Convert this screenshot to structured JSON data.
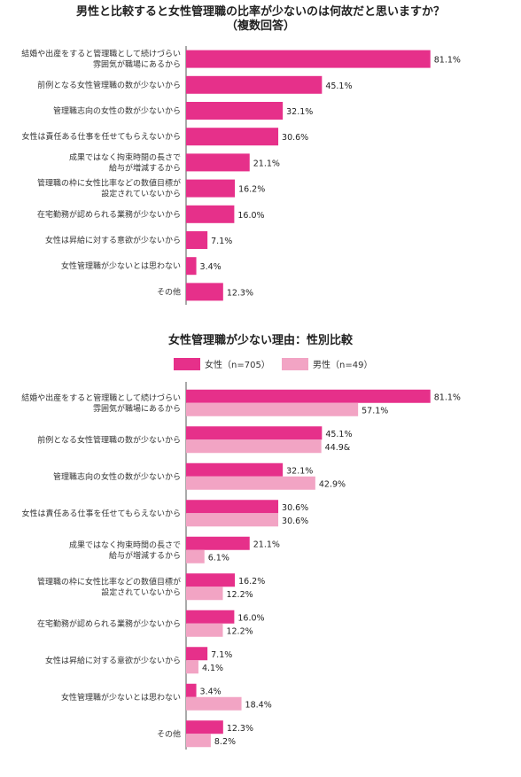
{
  "chart_data": [
    {
      "type": "bar",
      "orientation": "horizontal",
      "title": "男性と比較すると女性管理職の比率が少ないのは何故だと思いますか？",
      "subtitle": "（複数回答）",
      "categories": [
        [
          "結婚や出産をすると管理職として続けづらい",
          "雰囲気が職場にあるから"
        ],
        [
          "前例となる女性管理職の数が少ないから"
        ],
        [
          "管理職志向の女性の数が少ないから"
        ],
        [
          "女性は責任ある仕事を任せてもらえないから"
        ],
        [
          "成果ではなく拘束時間の長さで",
          "給与が増減するから"
        ],
        [
          "管理職の枠に女性比率などの数値目標が",
          "設定されていないから"
        ],
        [
          "在宅勤務が認められる業務が少ないから"
        ],
        [
          "女性は昇給に対する意欲が少ないから"
        ],
        [
          "女性管理職が少ないとは思わない"
        ],
        [
          "その他"
        ]
      ],
      "values": [
        81.1,
        45.1,
        32.1,
        30.6,
        21.1,
        16.2,
        16.0,
        7.1,
        3.4,
        12.3
      ],
      "value_labels": [
        "81.1%",
        "45.1%",
        "32.1%",
        "30.6%",
        "21.1%",
        "16.2%",
        "16.0%",
        "7.1%",
        "3.4%",
        "12.3%"
      ],
      "color": "#e6308a",
      "xlim": [
        0,
        100
      ]
    },
    {
      "type": "bar",
      "orientation": "horizontal",
      "title": "女性管理職が少ない理由：性別比較",
      "legend_position": "top",
      "categories": [
        [
          "結婚や出産をすると管理職として続けづらい",
          "雰囲気が職場にあるから"
        ],
        [
          "前例となる女性管理職の数が少ないから"
        ],
        [
          "管理職志向の女性の数が少ないから"
        ],
        [
          "女性は責任ある仕事を任せてもらえないから"
        ],
        [
          "成果ではなく拘束時間の長さで",
          "給与が増減するから"
        ],
        [
          "管理職の枠に女性比率などの数値目標が",
          "設定されていないから"
        ],
        [
          "在宅勤務が認められる業務が少ないから"
        ],
        [
          "女性は昇給に対する意欲が少ないから"
        ],
        [
          "女性管理職が少ないとは思わない"
        ],
        [
          "その他"
        ]
      ],
      "series": [
        {
          "name": "女性（n=705）",
          "color": "#e6308a",
          "values": [
            81.1,
            45.1,
            32.1,
            30.6,
            21.1,
            16.2,
            16.0,
            7.1,
            3.4,
            12.3
          ],
          "value_labels": [
            "81.1%",
            "45.1%",
            "32.1%",
            "30.6%",
            "21.1%",
            "16.2%",
            "16.0%",
            "7.1%",
            "3.4%",
            "12.3%"
          ]
        },
        {
          "name": "男性（n=49）",
          "color": "#f2a4c4",
          "values": [
            57.1,
            44.9,
            42.9,
            30.6,
            6.1,
            12.2,
            12.2,
            4.1,
            18.4,
            8.2
          ],
          "value_labels": [
            "57.1%",
            "44.9&",
            "42.9%",
            "30.6%",
            "6.1%",
            "12.2%",
            "12.2%",
            "4.1%",
            "18.4%",
            "8.2%"
          ]
        }
      ],
      "xlim": [
        0,
        100
      ]
    }
  ]
}
